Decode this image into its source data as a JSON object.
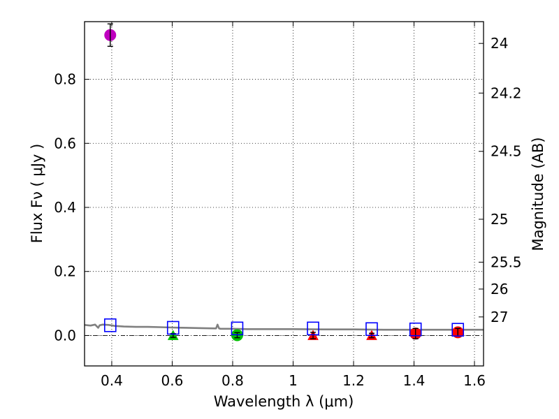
{
  "chart_data": {
    "type": "scatter",
    "xlabel": "Wavelength  λ (μm)",
    "ylabel": "Flux  Fν  ( μJy )",
    "y2label": "Magnitude (AB)",
    "xlim": [
      0.31,
      1.63
    ],
    "ylim": [
      -0.095,
      0.98
    ],
    "grid": true,
    "xticks": [
      0.4,
      0.6,
      0.8,
      1.0,
      1.2,
      1.4,
      1.6
    ],
    "xtick_labels": [
      "0.4",
      "0.6",
      "0.8",
      "1",
      "1.2",
      "1.4",
      "1.6"
    ],
    "yticks": [
      0.0,
      0.2,
      0.4,
      0.6,
      0.8
    ],
    "ytick_labels": [
      "0.0",
      "0.2",
      "0.4",
      "0.6",
      "0.8"
    ],
    "y2ticks": [
      {
        "label": "24",
        "flux": 0.912
      },
      {
        "label": "24.2",
        "flux": 0.757
      },
      {
        "label": "24.5",
        "flux": 0.575
      },
      {
        "label": "25",
        "flux": 0.363
      },
      {
        "label": "25.5",
        "flux": 0.229
      },
      {
        "label": "26",
        "flux": 0.145
      },
      {
        "label": "27",
        "flux": 0.058
      }
    ],
    "colors": {
      "magenta": "#bf00bf",
      "green": "#00c000",
      "red": "#ff0000",
      "blue": "#0000ff",
      "model": "#808080"
    },
    "series": [
      {
        "name": "observed-magenta",
        "marker": "circle",
        "color": "magenta",
        "points": [
          {
            "x": 0.395,
            "y": 0.938,
            "err": 0.035
          }
        ]
      },
      {
        "name": "upper-limit-green",
        "marker": "triangle",
        "color": "green",
        "points": [
          {
            "x": 0.603,
            "y": 0.0,
            "err": 0.006
          }
        ]
      },
      {
        "name": "observed-green",
        "marker": "circle",
        "color": "green",
        "points": [
          {
            "x": 0.815,
            "y": 0.001,
            "err": 0.008
          }
        ]
      },
      {
        "name": "upper-limit-red",
        "marker": "triangle",
        "color": "red",
        "points": [
          {
            "x": 1.066,
            "y": 0.0,
            "err": 0.01
          },
          {
            "x": 1.26,
            "y": 0.0,
            "err": 0.007
          }
        ]
      },
      {
        "name": "observed-red",
        "marker": "circle",
        "color": "red",
        "points": [
          {
            "x": 1.405,
            "y": 0.006,
            "err": 0.016
          },
          {
            "x": 1.545,
            "y": 0.01,
            "err": 0.012
          }
        ]
      },
      {
        "name": "model-photometry",
        "marker": "square-open",
        "color": "blue",
        "points": [
          {
            "x": 0.395,
            "y": 0.032
          },
          {
            "x": 0.603,
            "y": 0.024
          },
          {
            "x": 0.815,
            "y": 0.022
          },
          {
            "x": 1.066,
            "y": 0.022
          },
          {
            "x": 1.26,
            "y": 0.02
          },
          {
            "x": 1.405,
            "y": 0.019
          },
          {
            "x": 1.545,
            "y": 0.018
          }
        ]
      }
    ],
    "model_spectrum": {
      "color": "model",
      "x": [
        0.31,
        0.33,
        0.345,
        0.355,
        0.36,
        0.37,
        0.39,
        0.41,
        0.44,
        0.48,
        0.52,
        0.56,
        0.6,
        0.65,
        0.7,
        0.745,
        0.75,
        0.755,
        0.76,
        0.8,
        0.85,
        0.9,
        1.0,
        1.1,
        1.2,
        1.3,
        1.4,
        1.5,
        1.63
      ],
      "y": [
        0.033,
        0.031,
        0.034,
        0.024,
        0.032,
        0.034,
        0.033,
        0.03,
        0.028,
        0.027,
        0.027,
        0.026,
        0.025,
        0.024,
        0.023,
        0.022,
        0.034,
        0.022,
        0.021,
        0.021,
        0.02,
        0.02,
        0.02,
        0.019,
        0.019,
        0.018,
        0.018,
        0.018,
        0.018
      ]
    },
    "zero_line": 0.0
  }
}
